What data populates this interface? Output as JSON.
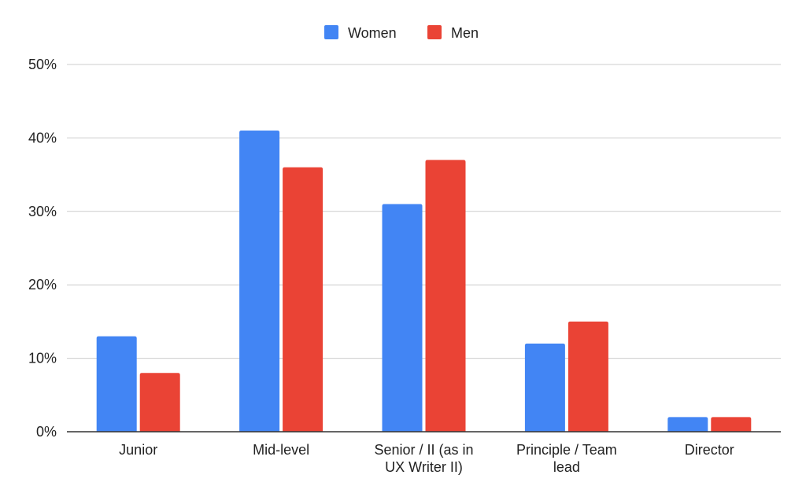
{
  "chart_data": {
    "type": "bar",
    "title": "",
    "xlabel": "",
    "ylabel": "",
    "categories": [
      [
        "Junior"
      ],
      [
        "Mid-level"
      ],
      [
        "Senior / II (as in",
        "UX Writer II)"
      ],
      [
        "Principle / Team",
        "lead"
      ],
      [
        "Director"
      ]
    ],
    "series": [
      {
        "name": "Women",
        "color": "#4285F4",
        "values": [
          13,
          41,
          31,
          12,
          2
        ]
      },
      {
        "name": "Men",
        "color": "#EA4335",
        "values": [
          8,
          36,
          37,
          15,
          2
        ]
      }
    ],
    "ylim": [
      0,
      50
    ],
    "yticks": [
      0,
      10,
      20,
      30,
      40,
      50
    ],
    "ytick_labels": [
      "0%",
      "10%",
      "20%",
      "30%",
      "40%",
      "50%"
    ],
    "grid": true,
    "legend_position": "top-center",
    "colors": {
      "grid": "#cccccc",
      "axis": "#333333",
      "text": "#222222"
    }
  }
}
